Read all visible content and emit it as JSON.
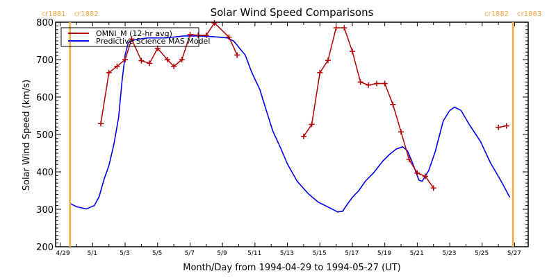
{
  "chart_data": {
    "type": "line",
    "title": "Solar Wind Speed Comparisons",
    "xlabel": "Month/Day from 1994-04-29 to 1994-05-27 (UT)",
    "ylabel": "Solar Wind Speed (km/s)",
    "ylim": [
      200,
      800
    ],
    "xlim_days": [
      0,
      29.1
    ],
    "y_ticks": [
      200,
      300,
      400,
      500,
      600,
      700,
      800
    ],
    "x_tick_labels": [
      {
        "day": 0.2,
        "label": "4/29"
      },
      {
        "day": 2,
        "label": "5/1"
      },
      {
        "day": 4,
        "label": "5/3"
      },
      {
        "day": 6,
        "label": "5/5"
      },
      {
        "day": 8,
        "label": "5/7"
      },
      {
        "day": 10,
        "label": "5/9"
      },
      {
        "day": 12,
        "label": "5/11"
      },
      {
        "day": 14,
        "label": "5/13"
      },
      {
        "day": 16,
        "label": "5/15"
      },
      {
        "day": 18,
        "label": "5/17"
      },
      {
        "day": 20,
        "label": "5/19"
      },
      {
        "day": 22,
        "label": "5/21"
      },
      {
        "day": 24,
        "label": "5/23"
      },
      {
        "day": 26,
        "label": "5/25"
      },
      {
        "day": 28,
        "label": "5/27"
      }
    ],
    "markers": [
      {
        "day": 0.8,
        "labels": [
          "cr1881",
          "cr1882"
        ],
        "color": "#f5a742"
      },
      {
        "day": 28.1,
        "labels": [
          "cr1882",
          "cr1883"
        ],
        "color": "#f5a742"
      }
    ],
    "legend": {
      "placement": "top-left"
    },
    "series": [
      {
        "name": "OMNI_M (12-hr avg)",
        "color": "#b30000",
        "marker": "plus",
        "segments": [
          [
            [
              2.7,
              529
            ],
            [
              3.2,
              665
            ],
            [
              3.7,
              682
            ],
            [
              4.2,
              700
            ],
            [
              4.6,
              755
            ],
            [
              5.2,
              697
            ],
            [
              5.7,
              690
            ],
            [
              6.2,
              730
            ],
            [
              6.8,
              700
            ],
            [
              7.2,
              682
            ],
            [
              7.7,
              700
            ],
            [
              8.2,
              767
            ],
            [
              8.7,
              765
            ],
            [
              9.2,
              765
            ],
            [
              9.7,
              798
            ],
            [
              10.6,
              760
            ],
            [
              11.1,
              712
            ]
          ],
          [
            [
              15.2,
              495
            ],
            [
              15.7,
              527
            ],
            [
              16.2,
              665
            ],
            [
              16.7,
              698
            ],
            [
              17.2,
              785
            ],
            [
              17.7,
              785
            ],
            [
              18.2,
              722
            ],
            [
              18.7,
              640
            ],
            [
              19.2,
              632
            ],
            [
              19.7,
              636
            ],
            [
              20.2,
              636
            ],
            [
              20.7,
              580
            ],
            [
              21.2,
              507
            ],
            [
              21.7,
              433
            ],
            [
              22.2,
              397
            ],
            [
              22.7,
              388
            ],
            [
              23.2,
              357
            ]
          ],
          [
            [
              27.2,
              519
            ],
            [
              27.7,
              523
            ]
          ]
        ]
      },
      {
        "name": "Predictive Science MAS Model",
        "color": "#0000ee",
        "marker": "none",
        "points": [
          [
            0.8,
            316
          ],
          [
            1.2,
            307
          ],
          [
            1.8,
            301
          ],
          [
            2.3,
            310
          ],
          [
            2.6,
            334
          ],
          [
            2.9,
            380
          ],
          [
            3.2,
            417
          ],
          [
            3.5,
            472
          ],
          [
            3.8,
            546
          ],
          [
            4.0,
            639
          ],
          [
            4.2,
            713
          ],
          [
            4.4,
            746
          ],
          [
            4.8,
            753
          ],
          [
            5.6,
            758
          ],
          [
            6.7,
            758
          ],
          [
            7.8,
            763
          ],
          [
            8.8,
            763
          ],
          [
            9.7,
            761
          ],
          [
            10.5,
            758
          ],
          [
            10.9,
            749
          ],
          [
            11.6,
            712
          ],
          [
            12.0,
            666
          ],
          [
            12.5,
            620
          ],
          [
            12.9,
            564
          ],
          [
            13.3,
            509
          ],
          [
            13.8,
            462
          ],
          [
            14.2,
            421
          ],
          [
            14.8,
            375
          ],
          [
            15.5,
            341
          ],
          [
            16.1,
            319
          ],
          [
            16.8,
            304
          ],
          [
            17.3,
            293
          ],
          [
            17.6,
            295
          ],
          [
            17.9,
            314
          ],
          [
            18.2,
            332
          ],
          [
            18.6,
            350
          ],
          [
            19.0,
            375
          ],
          [
            19.5,
            397
          ],
          [
            20.1,
            430
          ],
          [
            20.5,
            447
          ],
          [
            20.9,
            461
          ],
          [
            21.3,
            467
          ],
          [
            21.6,
            456
          ],
          [
            21.9,
            425
          ],
          [
            22.3,
            378
          ],
          [
            22.5,
            375
          ],
          [
            22.9,
            403
          ],
          [
            23.3,
            453
          ],
          [
            23.8,
            536
          ],
          [
            24.2,
            564
          ],
          [
            24.5,
            573
          ],
          [
            24.9,
            564
          ],
          [
            25.4,
            527
          ],
          [
            26.1,
            481
          ],
          [
            26.7,
            425
          ],
          [
            27.4,
            373
          ],
          [
            27.9,
            332
          ]
        ]
      }
    ]
  }
}
